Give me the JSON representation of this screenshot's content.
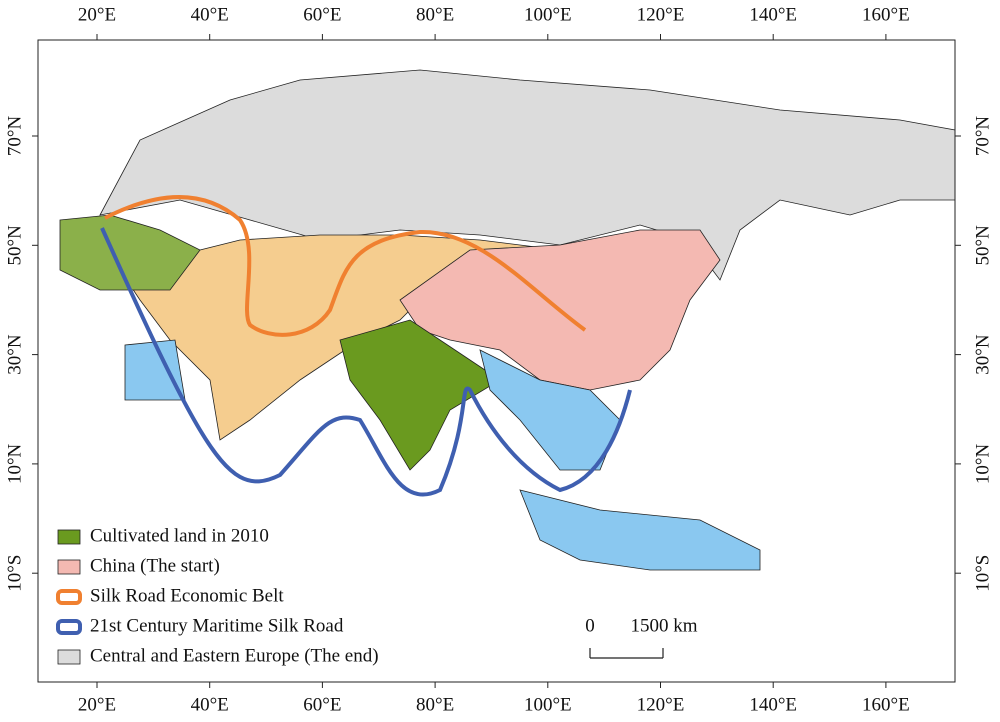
{
  "map": {
    "lon_ticks": [
      "20°E",
      "40°E",
      "60°E",
      "80°E",
      "100°E",
      "120°E",
      "140°E",
      "160°E"
    ],
    "lat_ticks": [
      "70°N",
      "50°N",
      "30°N",
      "10°N",
      "10°S"
    ],
    "legend": [
      {
        "label": "Cultivated land in 2010",
        "color": "#6a9a1f",
        "style": "fill"
      },
      {
        "label": "China (The start)",
        "color": "#f4b9b2",
        "style": "fill"
      },
      {
        "label": "Silk Road Economic Belt",
        "color": "#f08030",
        "style": "line"
      },
      {
        "label": "21st Century Maritime Silk Road",
        "color": "#3f5fb0",
        "style": "line"
      },
      {
        "label": "Central and Eastern Europe (The end)",
        "color": "#dcdcdc",
        "style": "fill"
      }
    ],
    "scale_bar": {
      "start": "0",
      "end": "1500 km"
    }
  }
}
